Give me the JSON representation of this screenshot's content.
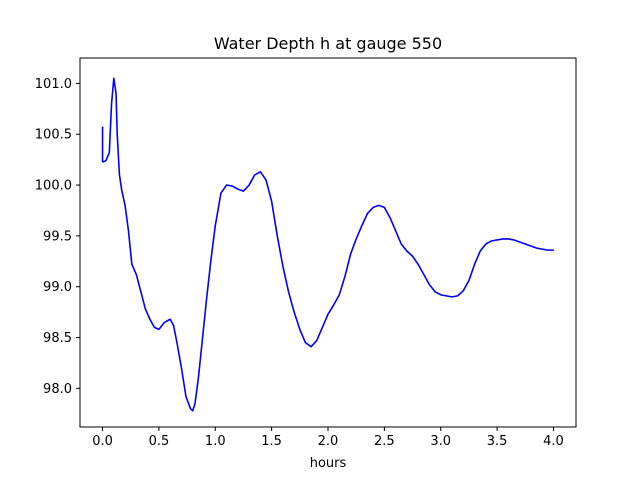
{
  "chart_data": {
    "type": "line",
    "title": "Water Depth h at gauge 550",
    "xlabel": "hours",
    "ylabel": "",
    "xlim": [
      -0.2,
      4.2
    ],
    "ylim": [
      97.62,
      101.25
    ],
    "xticks": [
      0.0,
      0.5,
      1.0,
      1.5,
      2.0,
      2.5,
      3.0,
      3.5,
      4.0
    ],
    "xtick_labels": [
      "0.0",
      "0.5",
      "1.0",
      "1.5",
      "2.0",
      "2.5",
      "3.0",
      "3.5",
      "4.0"
    ],
    "yticks": [
      98.0,
      98.5,
      99.0,
      99.5,
      100.0,
      100.5,
      101.0
    ],
    "ytick_labels": [
      "98.0",
      "98.5",
      "99.0",
      "99.5",
      "100.0",
      "100.5",
      "101.0"
    ],
    "grid": false,
    "legend": "none",
    "series": [
      {
        "color": "#0000ff",
        "x": [
          0.0,
          0.0,
          0.01,
          0.03,
          0.06,
          0.08,
          0.1,
          0.12,
          0.13,
          0.15,
          0.17,
          0.2,
          0.23,
          0.26,
          0.3,
          0.34,
          0.38,
          0.42,
          0.46,
          0.5,
          0.55,
          0.6,
          0.63,
          0.66,
          0.7,
          0.74,
          0.78,
          0.8,
          0.82,
          0.85,
          0.88,
          0.92,
          0.96,
          1.0,
          1.05,
          1.1,
          1.15,
          1.2,
          1.25,
          1.3,
          1.35,
          1.4,
          1.45,
          1.5,
          1.55,
          1.6,
          1.65,
          1.7,
          1.75,
          1.8,
          1.85,
          1.9,
          1.95,
          2.0,
          2.05,
          2.1,
          2.15,
          2.2,
          2.25,
          2.3,
          2.35,
          2.4,
          2.45,
          2.5,
          2.55,
          2.6,
          2.65,
          2.7,
          2.75,
          2.8,
          2.85,
          2.9,
          2.95,
          3.0,
          3.05,
          3.1,
          3.15,
          3.2,
          3.25,
          3.3,
          3.35,
          3.4,
          3.45,
          3.5,
          3.55,
          3.6,
          3.65,
          3.7,
          3.75,
          3.8,
          3.85,
          3.9,
          3.95,
          4.0
        ],
        "y": [
          100.57,
          100.23,
          100.23,
          100.24,
          100.32,
          100.8,
          101.05,
          100.9,
          100.5,
          100.1,
          99.95,
          99.8,
          99.55,
          99.22,
          99.12,
          98.95,
          98.78,
          98.68,
          98.6,
          98.58,
          98.65,
          98.68,
          98.62,
          98.45,
          98.2,
          97.92,
          97.8,
          97.78,
          97.85,
          98.1,
          98.42,
          98.85,
          99.25,
          99.6,
          99.92,
          100.0,
          99.99,
          99.96,
          99.94,
          100.0,
          100.1,
          100.13,
          100.05,
          99.84,
          99.5,
          99.2,
          98.95,
          98.75,
          98.58,
          98.45,
          98.41,
          98.47,
          98.6,
          98.73,
          98.82,
          98.92,
          99.1,
          99.32,
          99.47,
          99.6,
          99.72,
          99.78,
          99.8,
          99.78,
          99.68,
          99.55,
          99.42,
          99.35,
          99.3,
          99.22,
          99.12,
          99.02,
          98.95,
          98.92,
          98.91,
          98.9,
          98.91,
          98.96,
          99.06,
          99.22,
          99.35,
          99.42,
          99.45,
          99.46,
          99.47,
          99.47,
          99.46,
          99.44,
          99.42,
          99.4,
          99.38,
          99.37,
          99.36,
          99.36
        ]
      }
    ]
  }
}
